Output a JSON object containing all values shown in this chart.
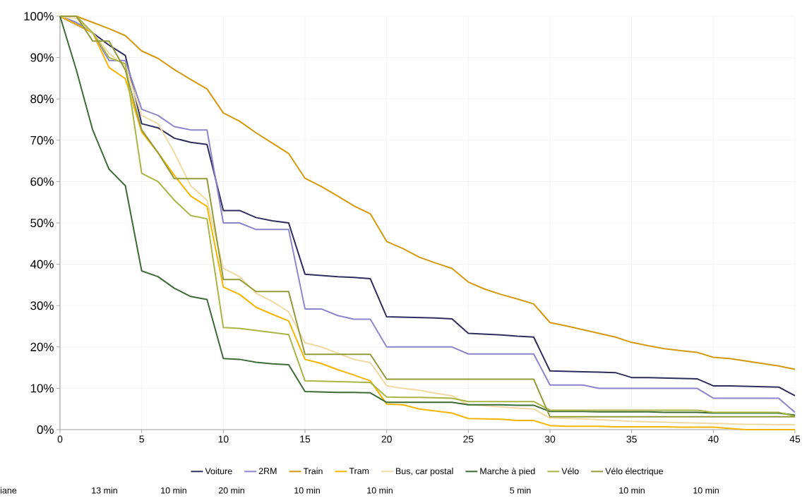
{
  "chart_data": {
    "type": "line",
    "x": [
      0,
      1,
      2,
      3,
      4,
      5,
      6,
      7,
      8,
      9,
      10,
      11,
      12,
      13,
      14,
      15,
      16,
      17,
      18,
      19,
      20,
      21,
      22,
      23,
      24,
      25,
      26,
      27,
      28,
      29,
      30,
      31,
      32,
      33,
      34,
      35,
      36,
      37,
      38,
      39,
      40,
      41,
      42,
      43,
      44,
      45
    ],
    "series": [
      {
        "name": "Voiture",
        "color": "#2e2d5c",
        "values": [
          100,
          null,
          96,
          93,
          90.5,
          74,
          73,
          70.5,
          69.5,
          69,
          53,
          53,
          51.3,
          50.5,
          50,
          37.6,
          37.3,
          37,
          36.8,
          36.5,
          27.3,
          27.2,
          27.1,
          27,
          26.8,
          23.3,
          23.1,
          22.9,
          22.6,
          22.4,
          14.2,
          14.1,
          14,
          13.9,
          13.8,
          12.6,
          12.6,
          12.5,
          12.4,
          12.3,
          10.6,
          10.6,
          10.5,
          10.4,
          10.3,
          8.2
        ]
      },
      {
        "name": "2RM",
        "color": "#8b85cc",
        "values": [
          100,
          98.5,
          96,
          89.3,
          89.3,
          77.5,
          76,
          73.3,
          72.5,
          72.5,
          50,
          50,
          48.4,
          48.4,
          48.4,
          29.2,
          29.2,
          27.6,
          26.7,
          26.7,
          20,
          20,
          20,
          20,
          20,
          18.3,
          18.3,
          18.3,
          18.3,
          18.3,
          10.8,
          10.8,
          10.8,
          10,
          10,
          10,
          10,
          10,
          10,
          10,
          7.6,
          7.6,
          7.6,
          7.6,
          7.6,
          4.2
        ]
      },
      {
        "name": "Train",
        "color": "#d4980e",
        "values": [
          100,
          100,
          98.5,
          97,
          95.3,
          91.6,
          89.8,
          87.1,
          84.7,
          82.4,
          76.6,
          74.6,
          71.8,
          69.3,
          66.8,
          60.8,
          58.8,
          56.5,
          54.1,
          52.2,
          45.5,
          43.8,
          41.7,
          40.3,
          39,
          35.7,
          34,
          32.7,
          31.6,
          30.4,
          25.9,
          25.1,
          24.2,
          23.3,
          22.4,
          21.1,
          20.3,
          19.6,
          19.1,
          18.7,
          17.5,
          17.2,
          16.6,
          16,
          15.4,
          14.6
        ]
      },
      {
        "name": "Tram",
        "color": "#f5b400",
        "values": [
          100,
          98,
          96,
          87.6,
          84.9,
          72,
          67,
          61.5,
          56.5,
          54,
          34.5,
          32.7,
          29.6,
          27.9,
          26.3,
          17,
          16,
          14.5,
          13.2,
          11.8,
          6.2,
          6,
          5,
          4.5,
          4,
          2.7,
          2.6,
          2.5,
          2.2,
          2.2,
          1,
          0.8,
          0.8,
          0.8,
          0.7,
          0.7,
          0.7,
          0.7,
          0.6,
          0.6,
          0.6,
          0.3,
          0,
          0,
          0,
          0
        ]
      },
      {
        "name": "Bus, car postal",
        "color": "#f0d9a3",
        "values": [
          100,
          99.5,
          96,
          91,
          88,
          76,
          74,
          67,
          59,
          55.5,
          39,
          37,
          33,
          31,
          28.5,
          21,
          20,
          18.5,
          17,
          16.2,
          10.6,
          10,
          9.5,
          8.8,
          8.2,
          6,
          5.8,
          5.5,
          5.2,
          5,
          2.8,
          2.7,
          2.6,
          2.4,
          2.2,
          2,
          1.9,
          1.8,
          1.7,
          1.6,
          1.5,
          1.4,
          1.3,
          1.3,
          1.2,
          1.2
        ]
      },
      {
        "name": "Marche à pied",
        "color": "#3d6b35",
        "values": [
          100,
          87,
          72.5,
          63,
          59,
          38.4,
          37,
          34.2,
          32.2,
          31.5,
          17.2,
          17,
          16.3,
          15.9,
          15.7,
          9.2,
          9.1,
          9,
          9,
          8.9,
          6.6,
          6.6,
          6.6,
          6.6,
          6.6,
          6,
          6,
          6,
          5.9,
          5.9,
          4.4,
          4.4,
          4.4,
          4.3,
          4.3,
          4.3,
          4.3,
          4.2,
          4.2,
          4.2,
          4,
          4,
          4,
          4,
          4,
          3.5
        ]
      },
      {
        "name": "Vélo",
        "color": "#a9b545",
        "values": [
          100,
          100,
          96,
          90,
          88.5,
          62,
          60,
          55.5,
          51.8,
          51,
          24.7,
          24.5,
          24,
          23.5,
          23,
          11.8,
          11.7,
          11.6,
          11.5,
          11.4,
          7.9,
          7.8,
          7.8,
          7.7,
          7.6,
          6.8,
          6.8,
          6.8,
          6.8,
          6.8,
          4.7,
          4.7,
          4.7,
          4.7,
          4.7,
          4.7,
          4.7,
          4.7,
          4.7,
          4.7,
          4.2,
          4.2,
          4.2,
          4.2,
          4.2,
          3.2
        ]
      },
      {
        "name": "Vélo électrique",
        "color": "#939a3a",
        "values": [
          100,
          100,
          94,
          94,
          87,
          72.5,
          67,
          60.7,
          60.7,
          60.7,
          36.3,
          36.3,
          33.4,
          33.4,
          33.4,
          18.2,
          18.2,
          18.2,
          18.2,
          18.2,
          12.2,
          12.2,
          12.2,
          12.2,
          12.2,
          12.2,
          12.2,
          12.2,
          12.2,
          12.2,
          3.1,
          3.1,
          3.1,
          3.1,
          3.1,
          3.1,
          3.1,
          3.1,
          3.1,
          3.1,
          3.1,
          3.1,
          3.1,
          3.1,
          3.1,
          3.1
        ]
      }
    ],
    "xlim": [
      0,
      45
    ],
    "xticks": [
      0,
      5,
      10,
      15,
      20,
      25,
      30,
      35,
      40,
      45
    ],
    "ylim": [
      0,
      100
    ],
    "yticks": [
      {
        "value": 0,
        "label": "0%"
      },
      {
        "value": 10,
        "label": "10%"
      },
      {
        "value": 20,
        "label": "20%"
      },
      {
        "value": 30,
        "label": "30%"
      },
      {
        "value": 40,
        "label": "40%"
      },
      {
        "value": 50,
        "label": "50%"
      },
      {
        "value": 60,
        "label": "60%"
      },
      {
        "value": 70,
        "label": "70%"
      },
      {
        "value": 80,
        "label": "80%"
      },
      {
        "value": 90,
        "label": "90%"
      },
      {
        "value": 100,
        "label": "100%"
      }
    ],
    "grid": true,
    "legend": "bottom",
    "marker": "none",
    "line_style": "solid",
    "annotations": [
      "iane",
      "13 min",
      "10 min",
      "20 min",
      "10 min",
      "10 min",
      "5 min",
      "10 min",
      "10 min"
    ]
  }
}
